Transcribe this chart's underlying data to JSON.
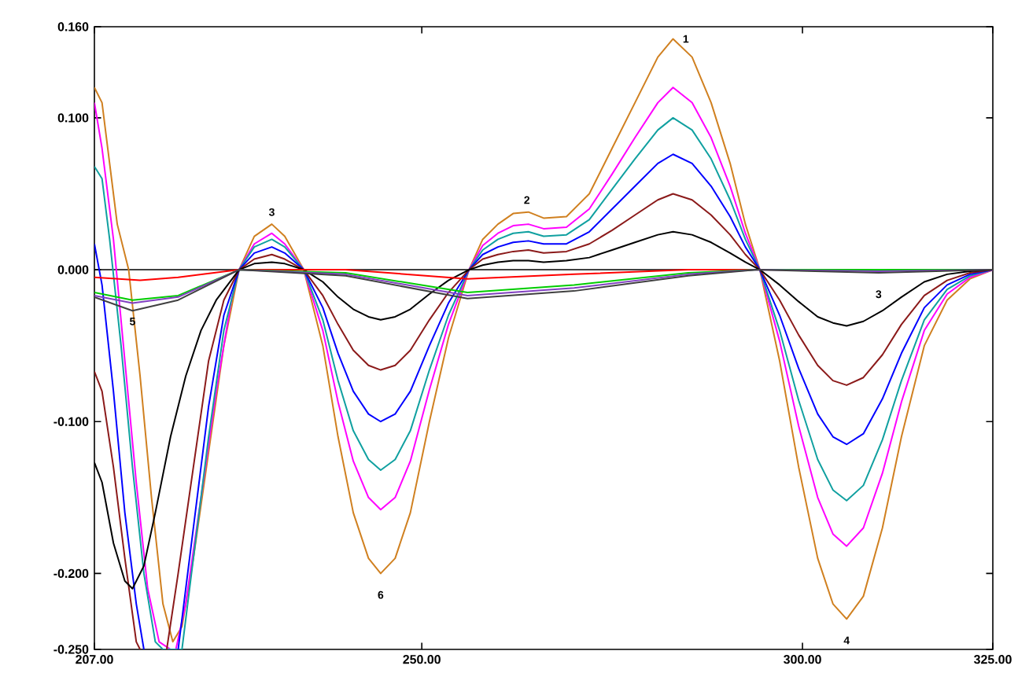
{
  "chart_data": {
    "type": "line",
    "marker": "none",
    "line_style": "solid",
    "xlim": [
      207,
      325
    ],
    "ylim": [
      -0.25,
      0.16
    ],
    "xticks": [
      {
        "value": 207,
        "label": "207.00"
      },
      {
        "value": 250,
        "label": "250.00"
      },
      {
        "value": 300,
        "label": "300.00"
      },
      {
        "value": 325,
        "label": "325.00"
      }
    ],
    "yticks": [
      {
        "value": -0.25,
        "label": "-0.250"
      },
      {
        "value": -0.2,
        "label": "-0.200"
      },
      {
        "value": -0.1,
        "label": "-0.100"
      },
      {
        "value": 0,
        "label": "0.000"
      },
      {
        "value": 0.1,
        "label": "0.100"
      },
      {
        "value": 0.16,
        "label": "0.160"
      }
    ],
    "ref_lines": [
      {
        "axis": "y",
        "value": 0,
        "color": "#000000"
      }
    ],
    "annotations": [
      {
        "text": "1",
        "x": 283,
        "y": 0.152
      },
      {
        "text": "6",
        "x": 244.6,
        "y": -0.2
      },
      {
        "text": "4",
        "x": 305.8,
        "y": -0.23
      },
      {
        "text": "2",
        "x": 263.8,
        "y": 0.038
      },
      {
        "text": "3",
        "x": 230.3,
        "y": 0.03
      },
      {
        "text": "5",
        "x": 212,
        "y": -0.02
      },
      {
        "text": "3",
        "x": 310,
        "y": -0.002
      }
    ],
    "series": [
      {
        "color": "#d08020",
        "x": [
          207,
          208,
          209,
          210,
          211.5,
          213,
          214.5,
          216,
          217.3,
          218.5,
          220,
          222,
          224,
          226,
          228,
          230.3,
          232,
          234.5,
          237,
          239,
          241,
          243,
          244.6,
          246.5,
          248.5,
          251,
          253.5,
          256.2,
          258,
          260,
          262,
          264,
          266,
          269,
          272,
          275,
          278,
          281,
          283,
          285.5,
          288,
          290.5,
          292.5,
          294.4,
          297,
          299.5,
          302,
          304,
          305.8,
          308,
          310.5,
          313,
          316,
          319,
          322,
          325
        ],
        "values": [
          0.12,
          0.11,
          0.07,
          0.03,
          0,
          -0.07,
          -0.15,
          -0.22,
          -0.245,
          -0.235,
          -0.19,
          -0.12,
          -0.05,
          0,
          0.022,
          0.03,
          0.022,
          0,
          -0.05,
          -0.11,
          -0.16,
          -0.19,
          -0.2,
          -0.19,
          -0.16,
          -0.1,
          -0.045,
          0,
          0.02,
          0.03,
          0.037,
          0.038,
          0.034,
          0.035,
          0.05,
          0.08,
          0.11,
          0.14,
          0.152,
          0.14,
          0.11,
          0.07,
          0.03,
          0,
          -0.06,
          -0.13,
          -0.19,
          -0.22,
          -0.23,
          -0.215,
          -0.17,
          -0.11,
          -0.05,
          -0.02,
          -0.006,
          0
        ]
      },
      {
        "color": "#ff00ff",
        "x": [
          207,
          208,
          209.5,
          211,
          212.5,
          214,
          215.5,
          217,
          217.7,
          219,
          221,
          223,
          225,
          226,
          228,
          230.3,
          232,
          234.5,
          237,
          239,
          241,
          243,
          244.6,
          246.5,
          248.5,
          251,
          253.5,
          256.2,
          258,
          260,
          262,
          264,
          266,
          269,
          272,
          275,
          278,
          281,
          283,
          285.5,
          288,
          290.5,
          292.5,
          294.4,
          297,
          299.5,
          302,
          304,
          305.8,
          308,
          310.5,
          313,
          316,
          319,
          322,
          325
        ],
        "values": [
          0.11,
          0.08,
          0.02,
          -0.06,
          -0.14,
          -0.21,
          -0.245,
          -0.25,
          -0.25,
          -0.22,
          -0.15,
          -0.08,
          -0.02,
          0,
          0.017,
          0.024,
          0.017,
          0,
          -0.04,
          -0.087,
          -0.126,
          -0.15,
          -0.158,
          -0.15,
          -0.126,
          -0.079,
          -0.036,
          0,
          0.016,
          0.024,
          0.029,
          0.03,
          0.027,
          0.028,
          0.04,
          0.063,
          0.087,
          0.11,
          0.12,
          0.11,
          0.087,
          0.055,
          0.024,
          0,
          -0.047,
          -0.103,
          -0.15,
          -0.174,
          -0.182,
          -0.17,
          -0.134,
          -0.087,
          -0.04,
          -0.016,
          -0.005,
          0
        ]
      },
      {
        "color": "#10a0a0",
        "x": [
          207,
          208,
          209,
          210.5,
          212,
          213.5,
          215,
          216,
          218.5,
          220,
          222,
          224,
          226,
          228,
          230.3,
          232,
          234.5,
          237,
          239,
          241,
          243,
          244.6,
          246.5,
          248.5,
          251,
          253.5,
          256.2,
          258,
          260,
          262,
          264,
          266,
          269,
          272,
          275,
          278,
          281,
          283,
          285.5,
          288,
          290.5,
          292.5,
          294.4,
          297,
          299.5,
          302,
          304,
          305.8,
          308,
          310.5,
          313,
          316,
          319,
          322,
          325
        ],
        "values": [
          0.068,
          0.06,
          0.02,
          -0.05,
          -0.13,
          -0.2,
          -0.245,
          -0.25,
          -0.25,
          -0.19,
          -0.11,
          -0.04,
          0,
          0.015,
          0.02,
          0.015,
          0,
          -0.033,
          -0.073,
          -0.106,
          -0.125,
          -0.132,
          -0.125,
          -0.106,
          -0.066,
          -0.03,
          0,
          0.013,
          0.02,
          0.024,
          0.025,
          0.022,
          0.023,
          0.033,
          0.053,
          0.073,
          0.092,
          0.1,
          0.092,
          0.073,
          0.046,
          0.02,
          0,
          -0.04,
          -0.086,
          -0.125,
          -0.145,
          -0.152,
          -0.142,
          -0.112,
          -0.073,
          -0.033,
          -0.013,
          -0.004,
          0
        ]
      },
      {
        "color": "#0000ff",
        "x": [
          207,
          208,
          209.5,
          211,
          212.5,
          213.5,
          213.6,
          217.9,
          218,
          220,
          222,
          224,
          226,
          228,
          230.3,
          232,
          234.5,
          237,
          239,
          241,
          243,
          244.6,
          246.5,
          248.5,
          251,
          253.5,
          256.2,
          258,
          260,
          262,
          264,
          266,
          269,
          272,
          275,
          278,
          281,
          283,
          285.5,
          288,
          290.5,
          292.5,
          294.4,
          297,
          299.5,
          302,
          304,
          305.8,
          308,
          310.5,
          313,
          316,
          319,
          322,
          325
        ],
        "values": [
          0.017,
          -0.01,
          -0.08,
          -0.16,
          -0.22,
          -0.25,
          null,
          null,
          -0.25,
          -0.17,
          -0.09,
          -0.03,
          0,
          0.011,
          0.015,
          0.011,
          0,
          -0.025,
          -0.055,
          -0.08,
          -0.095,
          -0.1,
          -0.095,
          -0.08,
          -0.05,
          -0.022,
          0,
          0.01,
          0.015,
          0.018,
          0.019,
          0.017,
          0.017,
          0.025,
          0.04,
          0.055,
          0.07,
          0.076,
          0.07,
          0.055,
          0.035,
          0.015,
          0,
          -0.03,
          -0.065,
          -0.095,
          -0.11,
          -0.115,
          -0.108,
          -0.085,
          -0.055,
          -0.025,
          -0.01,
          -0.003,
          0
        ]
      },
      {
        "color": "#8b1a1a",
        "x": [
          207,
          208,
          209.5,
          211,
          212.5,
          213,
          213.1,
          216.4,
          216.5,
          218,
          220,
          222,
          224,
          226,
          228,
          230.3,
          232,
          234.5,
          237,
          239,
          241,
          243,
          244.6,
          246.5,
          248.5,
          251,
          253.5,
          256.2,
          258,
          260,
          262,
          264,
          266,
          269,
          272,
          275,
          278,
          281,
          283,
          285.5,
          288,
          290.5,
          292.5,
          294.4,
          297,
          299.5,
          302,
          304,
          305.8,
          308,
          310.5,
          313,
          316,
          319,
          322,
          325
        ],
        "values": [
          -0.067,
          -0.08,
          -0.13,
          -0.19,
          -0.245,
          -0.25,
          null,
          null,
          -0.25,
          -0.2,
          -0.13,
          -0.06,
          -0.02,
          0,
          0.007,
          0.01,
          0.007,
          0,
          -0.017,
          -0.036,
          -0.053,
          -0.063,
          -0.066,
          -0.063,
          -0.053,
          -0.033,
          -0.015,
          0,
          0.007,
          0.01,
          0.012,
          0.013,
          0.011,
          0.012,
          0.017,
          0.026,
          0.036,
          0.046,
          0.05,
          0.046,
          0.036,
          0.023,
          0.01,
          0,
          -0.02,
          -0.043,
          -0.063,
          -0.073,
          -0.076,
          -0.071,
          -0.056,
          -0.036,
          -0.017,
          -0.007,
          -0.002,
          0
        ]
      },
      {
        "color": "#000000",
        "x": [
          207,
          208,
          209.5,
          211,
          212,
          213.5,
          215,
          217,
          219,
          221,
          223,
          226,
          228,
          230.3,
          232,
          234.5,
          237,
          239,
          241,
          243,
          244.6,
          246.5,
          248.5,
          251,
          253.5,
          256.2,
          258,
          260,
          262,
          264,
          266,
          269,
          272,
          275,
          278,
          281,
          283,
          285.5,
          288,
          290.5,
          292.5,
          294.4,
          297,
          299.5,
          302,
          304,
          305.8,
          308,
          310.5,
          313,
          316,
          319,
          322,
          325
        ],
        "values": [
          -0.127,
          -0.14,
          -0.18,
          -0.205,
          -0.21,
          -0.195,
          -0.16,
          -0.11,
          -0.07,
          -0.04,
          -0.02,
          0,
          0.004,
          0.005,
          0.004,
          0,
          -0.008,
          -0.018,
          -0.026,
          -0.031,
          -0.033,
          -0.031,
          -0.026,
          -0.016,
          -0.007,
          0,
          0.003,
          0.005,
          0.006,
          0.006,
          0.005,
          0.006,
          0.008,
          0.013,
          0.018,
          0.023,
          0.025,
          0.023,
          0.018,
          0.011,
          0.005,
          0,
          -0.01,
          -0.021,
          -0.031,
          -0.035,
          -0.037,
          -0.034,
          -0.027,
          -0.018,
          -0.008,
          -0.003,
          -0.001,
          0
        ]
      },
      {
        "color": "#ff0000",
        "x": [
          207,
          213,
          218,
          226,
          240,
          256,
          270,
          285,
          294,
          310,
          325
        ],
        "values": [
          -0.005,
          -0.007,
          -0.005,
          0,
          0,
          -0.006,
          -0.003,
          0,
          0,
          0,
          0
        ]
      },
      {
        "color": "#00cc00",
        "x": [
          207,
          212,
          218,
          226,
          240,
          256,
          270,
          285,
          294,
          310,
          325
        ],
        "values": [
          -0.015,
          -0.02,
          -0.017,
          0,
          -0.002,
          -0.015,
          -0.01,
          -0.002,
          0,
          0,
          0
        ]
      },
      {
        "color": "#8040c0",
        "x": [
          207,
          212,
          218,
          226,
          240,
          256,
          270,
          285,
          294,
          310,
          325
        ],
        "values": [
          -0.017,
          -0.022,
          -0.018,
          0,
          -0.003,
          -0.017,
          -0.012,
          -0.003,
          0,
          -0.001,
          0
        ]
      },
      {
        "color": "#404040",
        "x": [
          207,
          212,
          218,
          226,
          240,
          256,
          270,
          285,
          294,
          310,
          325
        ],
        "values": [
          -0.018,
          -0.027,
          -0.02,
          0,
          -0.004,
          -0.019,
          -0.014,
          -0.004,
          0,
          -0.002,
          0
        ]
      }
    ]
  }
}
